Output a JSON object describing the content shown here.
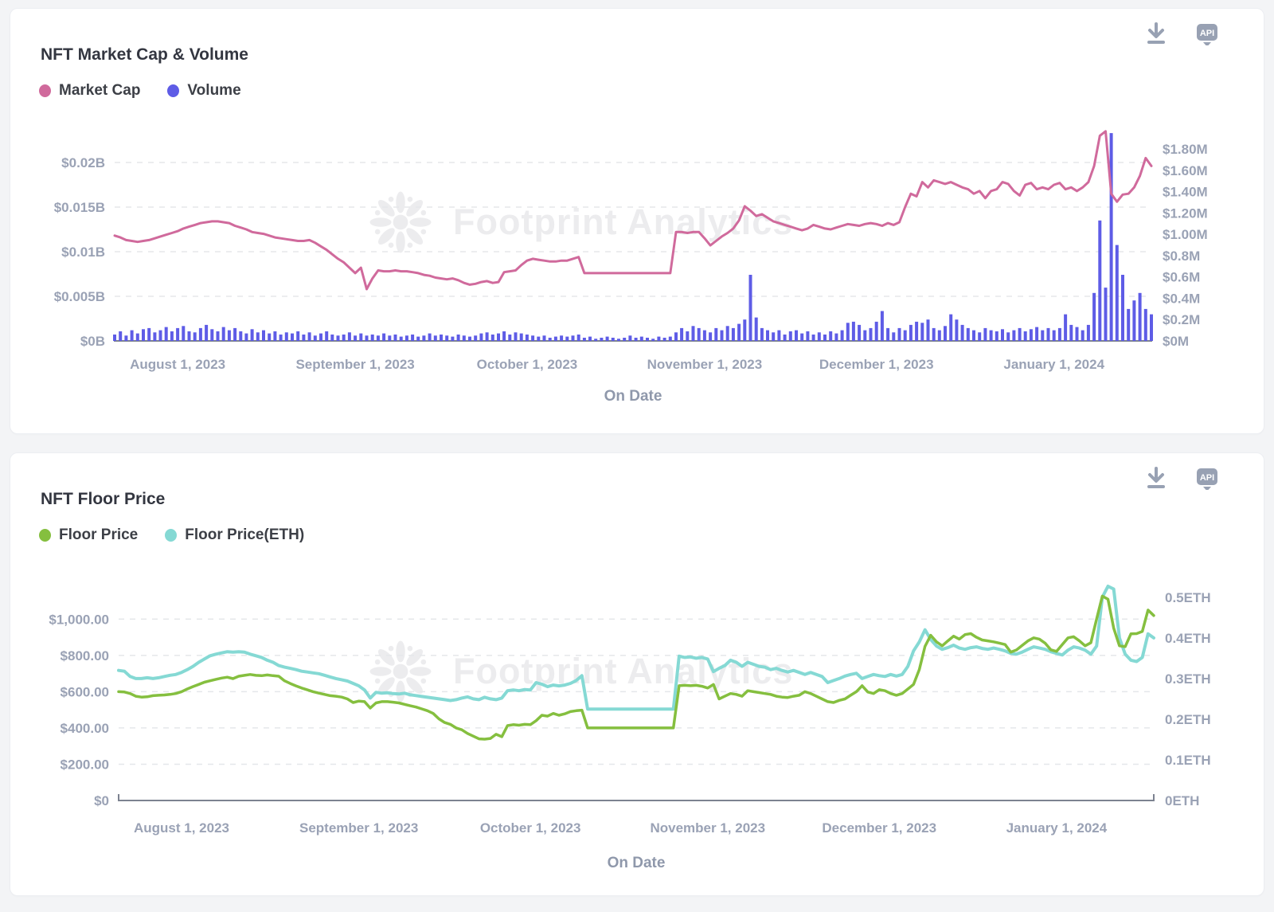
{
  "watermark": {
    "text": "Footprint Analytics"
  },
  "header_actions": {
    "download": "download-icon",
    "api_label": "API"
  },
  "colors": {
    "market_cap": "#d06a9c",
    "volume": "#5e5ce6",
    "floor_price": "#85bf3f",
    "floor_price_eth": "#85d9d4",
    "axis_label": "#9aa2b5",
    "icon": "#98a1b3",
    "watermark": "#ececee"
  },
  "chart_data": [
    {
      "type": "line+bar",
      "title": "NFT Market Cap & Volume",
      "xlabel": "On Date",
      "legend": [
        {
          "label": "Market Cap",
          "color": "#d06a9c"
        },
        {
          "label": "Volume",
          "color": "#5e5ce6"
        }
      ],
      "x_ticks": [
        {
          "day": 11,
          "label": "August 1, 2023"
        },
        {
          "day": 42,
          "label": "September 1, 2023"
        },
        {
          "day": 72,
          "label": "October 1, 2023"
        },
        {
          "day": 103,
          "label": "November 1, 2023"
        },
        {
          "day": 133,
          "label": "December 1, 2023"
        },
        {
          "day": 164,
          "label": "January 1, 2024"
        }
      ],
      "left_axis": {
        "unit": "$B",
        "ylim": [
          0,
          0.0258
        ],
        "ticks": [
          {
            "value": 0,
            "label": "$0B"
          },
          {
            "value": 0.005,
            "label": "$0.005B"
          },
          {
            "value": 0.01,
            "label": "$0.01B"
          },
          {
            "value": 0.015,
            "label": "$0.015B"
          },
          {
            "value": 0.02,
            "label": "$0.02B"
          }
        ]
      },
      "right_axis": {
        "unit": "$M",
        "ylim": [
          0,
          2.16
        ],
        "ticks": [
          {
            "value": 0,
            "label": "$0M"
          },
          {
            "value": 0.2,
            "label": "$0.2M"
          },
          {
            "value": 0.4,
            "label": "$0.4M"
          },
          {
            "value": 0.6,
            "label": "$0.6M"
          },
          {
            "value": 0.8,
            "label": "$0.8M"
          },
          {
            "value": 1.0,
            "label": "$1.00M"
          },
          {
            "value": 1.2,
            "label": "$1.20M"
          },
          {
            "value": 1.4,
            "label": "$1.40M"
          },
          {
            "value": 1.6,
            "label": "$1.60M"
          },
          {
            "value": 1.8,
            "label": "$1.80M"
          }
        ]
      },
      "series": [
        {
          "name": "Volume",
          "type": "bar",
          "axis": "right",
          "color": "#5e5ce6",
          "scale": 1,
          "values": [
            0.06,
            0.09,
            0.05,
            0.1,
            0.07,
            0.11,
            0.12,
            0.08,
            0.1,
            0.13,
            0.09,
            0.12,
            0.14,
            0.09,
            0.08,
            0.12,
            0.15,
            0.11,
            0.09,
            0.13,
            0.1,
            0.12,
            0.09,
            0.07,
            0.11,
            0.08,
            0.1,
            0.07,
            0.09,
            0.06,
            0.08,
            0.07,
            0.09,
            0.06,
            0.08,
            0.05,
            0.07,
            0.09,
            0.06,
            0.05,
            0.06,
            0.08,
            0.05,
            0.07,
            0.05,
            0.06,
            0.05,
            0.07,
            0.05,
            0.06,
            0.04,
            0.05,
            0.06,
            0.04,
            0.05,
            0.07,
            0.05,
            0.06,
            0.05,
            0.04,
            0.06,
            0.05,
            0.04,
            0.05,
            0.07,
            0.08,
            0.06,
            0.07,
            0.09,
            0.06,
            0.08,
            0.07,
            0.06,
            0.05,
            0.04,
            0.05,
            0.03,
            0.04,
            0.05,
            0.04,
            0.05,
            0.06,
            0.03,
            0.04,
            0.02,
            0.03,
            0.04,
            0.03,
            0.02,
            0.03,
            0.05,
            0.03,
            0.04,
            0.03,
            0.02,
            0.04,
            0.03,
            0.04,
            0.08,
            0.12,
            0.09,
            0.14,
            0.12,
            0.1,
            0.08,
            0.12,
            0.1,
            0.14,
            0.12,
            0.16,
            0.2,
            0.62,
            0.22,
            0.12,
            0.1,
            0.08,
            0.1,
            0.06,
            0.09,
            0.1,
            0.07,
            0.09,
            0.06,
            0.08,
            0.06,
            0.09,
            0.07,
            0.1,
            0.17,
            0.18,
            0.15,
            0.1,
            0.12,
            0.18,
            0.28,
            0.12,
            0.08,
            0.12,
            0.1,
            0.15,
            0.18,
            0.17,
            0.2,
            0.12,
            0.1,
            0.14,
            0.25,
            0.2,
            0.15,
            0.12,
            0.1,
            0.08,
            0.12,
            0.1,
            0.09,
            0.11,
            0.08,
            0.1,
            0.12,
            0.09,
            0.11,
            0.13,
            0.1,
            0.12,
            0.1,
            0.12,
            0.25,
            0.15,
            0.13,
            0.1,
            0.15,
            0.45,
            1.13,
            0.5,
            1.95,
            0.9,
            0.62,
            0.3,
            0.38,
            0.45,
            0.3,
            0.25
          ]
        },
        {
          "name": "Market Cap",
          "type": "line",
          "axis": "left",
          "color": "#d06a9c",
          "scale": 0.0001,
          "line_width": 3,
          "values": [
            118,
            116,
            113,
            112,
            111,
            112,
            113,
            115,
            117,
            119,
            121,
            123,
            126,
            128,
            130,
            132,
            133,
            134,
            134,
            133,
            132,
            129,
            127,
            125,
            122,
            121,
            120,
            118,
            116,
            115,
            114,
            113,
            112,
            112,
            113,
            110,
            106,
            102,
            97,
            92,
            88,
            82,
            76,
            82,
            58,
            70,
            79,
            78,
            78,
            79,
            78,
            78,
            77,
            76,
            74,
            73,
            71,
            70,
            69,
            70,
            68,
            65,
            63,
            64,
            66,
            67,
            65,
            66,
            77,
            78,
            79,
            85,
            90,
            92,
            91,
            90,
            89,
            89,
            90,
            90,
            92,
            94,
            76,
            76,
            76,
            76,
            76,
            76,
            76,
            76,
            76,
            76,
            76,
            76,
            76,
            76,
            76,
            76,
            122,
            122,
            121,
            122,
            122,
            115,
            107,
            112,
            117,
            121,
            126,
            135,
            151,
            146,
            140,
            142,
            138,
            134,
            132,
            130,
            128,
            126,
            124,
            126,
            130,
            128,
            126,
            125,
            127,
            129,
            131,
            130,
            129,
            131,
            132,
            131,
            129,
            132,
            130,
            133,
            150,
            165,
            162,
            178,
            172,
            180,
            178,
            176,
            178,
            175,
            172,
            170,
            165,
            168,
            160,
            168,
            170,
            178,
            176,
            168,
            163,
            175,
            177,
            170,
            172,
            170,
            175,
            177,
            170,
            172,
            168,
            172,
            178,
            196,
            230,
            235,
            165,
            156,
            164,
            165,
            172,
            185,
            205,
            196
          ]
        }
      ]
    },
    {
      "type": "line",
      "title": "NFT Floor Price",
      "xlabel": "On Date",
      "legend": [
        {
          "label": "Floor Price",
          "color": "#85bf3f"
        },
        {
          "label": "Floor Price(ETH)",
          "color": "#85d9d4"
        }
      ],
      "x_ticks": [
        {
          "day": 11,
          "label": "August 1, 2023"
        },
        {
          "day": 42,
          "label": "September 1, 2023"
        },
        {
          "day": 72,
          "label": "October 1, 2023"
        },
        {
          "day": 103,
          "label": "November 1, 2023"
        },
        {
          "day": 133,
          "label": "December 1, 2023"
        },
        {
          "day": 164,
          "label": "January 1, 2024"
        }
      ],
      "left_axis": {
        "unit": "$",
        "ylim": [
          0,
          1300
        ],
        "ticks": [
          {
            "value": 0,
            "label": "$0"
          },
          {
            "value": 200,
            "label": "$200.00"
          },
          {
            "value": 400,
            "label": "$400.00"
          },
          {
            "value": 600,
            "label": "$600.00"
          },
          {
            "value": 800,
            "label": "$800.00"
          },
          {
            "value": 1000,
            "label": "$1,000.00"
          }
        ]
      },
      "right_axis": {
        "unit": "ETH",
        "ylim": [
          0,
          0.58
        ],
        "ticks": [
          {
            "value": 0,
            "label": "0ETH"
          },
          {
            "value": 0.1,
            "label": "0.1ETH"
          },
          {
            "value": 0.2,
            "label": "0.2ETH"
          },
          {
            "value": 0.3,
            "label": "0.3ETH"
          },
          {
            "value": 0.4,
            "label": "0.4ETH"
          },
          {
            "value": 0.5,
            "label": "0.5ETH"
          }
        ]
      },
      "series": [
        {
          "name": "Floor Price(ETH)",
          "type": "line",
          "axis": "right",
          "color": "#85d9d4",
          "scale": 0.001,
          "line_width": 4,
          "values": [
            320,
            318,
            305,
            300,
            300,
            302,
            300,
            302,
            305,
            308,
            310,
            315,
            322,
            330,
            340,
            348,
            356,
            360,
            363,
            366,
            365,
            366,
            365,
            360,
            356,
            352,
            345,
            340,
            332,
            328,
            325,
            322,
            318,
            316,
            314,
            312,
            308,
            304,
            300,
            297,
            294,
            288,
            282,
            272,
            252,
            266,
            264,
            265,
            263,
            262,
            264,
            260,
            258,
            256,
            254,
            252,
            250,
            248,
            246,
            248,
            252,
            255,
            250,
            248,
            254,
            250,
            248,
            252,
            270,
            272,
            270,
            273,
            272,
            290,
            286,
            280,
            284,
            282,
            284,
            288,
            295,
            307,
            225,
            225,
            225,
            225,
            225,
            225,
            225,
            225,
            225,
            225,
            225,
            225,
            225,
            225,
            225,
            225,
            355,
            352,
            353,
            350,
            352,
            348,
            317,
            325,
            332,
            345,
            340,
            330,
            340,
            335,
            330,
            328,
            322,
            325,
            320,
            316,
            320,
            315,
            310,
            315,
            310,
            305,
            290,
            295,
            300,
            306,
            310,
            313,
            300,
            305,
            310,
            307,
            305,
            310,
            306,
            310,
            330,
            368,
            390,
            420,
            396,
            380,
            372,
            376,
            382,
            375,
            372,
            376,
            378,
            374,
            372,
            375,
            372,
            368,
            362,
            360,
            365,
            372,
            378,
            375,
            372,
            366,
            362,
            358,
            370,
            378,
            375,
            370,
            360,
            380,
            500,
            527,
            520,
            400,
            360,
            345,
            342,
            352,
            410,
            400
          ]
        },
        {
          "name": "Floor Price",
          "type": "line",
          "axis": "left",
          "color": "#85bf3f",
          "scale": 1,
          "line_width": 3.5,
          "values": [
            600,
            598,
            590,
            575,
            570,
            572,
            578,
            580,
            582,
            585,
            590,
            600,
            615,
            628,
            640,
            652,
            660,
            668,
            675,
            680,
            672,
            685,
            690,
            695,
            690,
            688,
            692,
            688,
            685,
            660,
            645,
            632,
            620,
            610,
            600,
            592,
            585,
            578,
            575,
            570,
            560,
            540,
            548,
            545,
            510,
            538,
            545,
            545,
            542,
            538,
            530,
            522,
            515,
            505,
            495,
            480,
            450,
            430,
            420,
            400,
            390,
            370,
            355,
            340,
            338,
            342,
            365,
            352,
            413,
            418,
            415,
            420,
            418,
            440,
            470,
            465,
            480,
            470,
            478,
            490,
            495,
            498,
            400,
            400,
            400,
            400,
            400,
            400,
            400,
            400,
            400,
            400,
            400,
            400,
            400,
            400,
            400,
            400,
            633,
            635,
            633,
            635,
            630,
            620,
            640,
            560,
            575,
            590,
            585,
            575,
            605,
            600,
            595,
            590,
            585,
            575,
            570,
            568,
            575,
            580,
            600,
            590,
            575,
            560,
            545,
            540,
            552,
            560,
            580,
            600,
            633,
            598,
            590,
            611,
            605,
            590,
            580,
            590,
            615,
            640,
            721,
            850,
            911,
            875,
            853,
            880,
            906,
            890,
            915,
            920,
            900,
            885,
            880,
            875,
            868,
            860,
            818,
            830,
            855,
            880,
            897,
            890,
            868,
            831,
            822,
            860,
            897,
            903,
            880,
            853,
            870,
            1000,
            1127,
            1110,
            950,
            853,
            848,
            919,
            920,
            932,
            1050,
            1020
          ]
        }
      ]
    }
  ]
}
